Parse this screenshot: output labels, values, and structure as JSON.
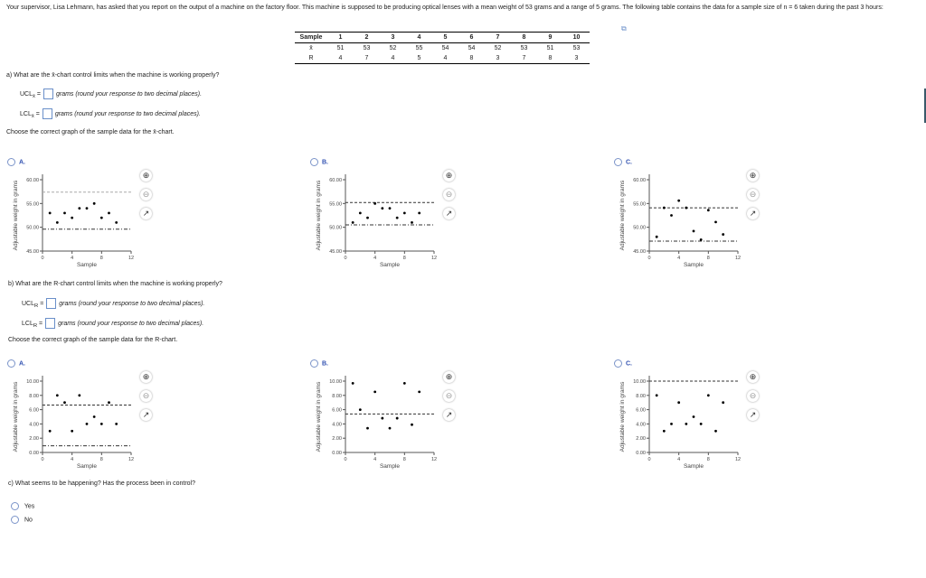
{
  "intro": "Your supervisor, Lisa Lehmann, has asked that you report on the output of a machine on the factory floor. This machine is supposed to be producing optical lenses with a mean weight of 53 grams and a range of 5 grams. The following table contains the data for a sample size of n = 6 taken during the past 3 hours:",
  "table": {
    "headers": [
      "Sample",
      "1",
      "2",
      "3",
      "4",
      "5",
      "6",
      "7",
      "8",
      "9",
      "10"
    ],
    "rows": [
      [
        "x̄",
        "51",
        "53",
        "52",
        "55",
        "54",
        "54",
        "52",
        "53",
        "51",
        "53"
      ],
      [
        "R",
        "4",
        "7",
        "4",
        "5",
        "4",
        "8",
        "3",
        "7",
        "8",
        "3"
      ]
    ]
  },
  "qa": {
    "question": "a) What are the x̄-chart control limits when the machine is working properly?",
    "ucl_label": "UCL",
    "ucl_sub": "x̄",
    "lcl_label": "LCL",
    "lcl_sub": "x̄",
    "eq": "=",
    "hint": "grams (round your response to two decimal places).",
    "choose": "Choose the correct graph of the sample data for the x̄-chart."
  },
  "qb": {
    "question": "b) What are the R-chart control limits when the machine is working properly?",
    "ucl_label": "UCL",
    "ucl_sub": "R",
    "lcl_label": "LCL",
    "lcl_sub": "R",
    "eq": "=",
    "hint": "grams (round your response to two decimal places).",
    "choose": "Choose the correct graph of the sample data for the R-chart."
  },
  "qc": {
    "question": "c) What seems to be happening? Has the process been in control?",
    "options": [
      "Yes",
      "No"
    ]
  },
  "icons": [
    "zoom-in-icon",
    "zoom-out-icon",
    "popout-icon"
  ],
  "chart_data": [
    {
      "id": "xbar-A",
      "option": "A.",
      "type": "scatter",
      "xlabel": "Sample",
      "ylabel": "Adjustable weight in grams",
      "xlim": [
        0,
        12
      ],
      "ylim": [
        45,
        60
      ],
      "xticks": [
        "0",
        "4",
        "8",
        "12"
      ],
      "yticks": [
        "60.00",
        "55.00",
        "50.00",
        "45.00"
      ],
      "ytickvals": [
        60,
        55,
        50,
        45
      ],
      "x": [
        1,
        2,
        3,
        4,
        5,
        6,
        7,
        8,
        9,
        10
      ],
      "y": [
        53,
        51,
        53,
        52,
        54,
        54,
        55,
        52,
        53,
        51
      ],
      "ucl": 57.4,
      "lcl": 49.6
    },
    {
      "id": "xbar-B",
      "option": "B.",
      "type": "scatter",
      "xlabel": "Sample",
      "ylabel": "Adjustable weight in grams",
      "xlim": [
        0,
        12
      ],
      "ylim": [
        45,
        60
      ],
      "xticks": [
        "0",
        "4",
        "8",
        "12"
      ],
      "yticks": [
        "60.00",
        "55.00",
        "50.00",
        "45.00"
      ],
      "ytickvals": [
        60,
        55,
        50,
        45
      ],
      "x": [
        1,
        2,
        3,
        4,
        5,
        6,
        7,
        8,
        9,
        10
      ],
      "y": [
        51,
        53,
        52,
        55,
        54,
        54,
        52,
        53,
        51,
        53
      ],
      "ucl": 55.2,
      "lcl": 50.5
    },
    {
      "id": "xbar-C",
      "option": "C.",
      "type": "scatter",
      "xlabel": "Sample",
      "ylabel": "Adjustable weight in grams",
      "xlim": [
        0,
        12
      ],
      "ylim": [
        45,
        60
      ],
      "xticks": [
        "0",
        "4",
        "8",
        "12"
      ],
      "yticks": [
        "60.00",
        "55.00",
        "50.00",
        "45.00"
      ],
      "ytickvals": [
        60,
        55,
        50,
        45
      ],
      "x": [
        1,
        2,
        3,
        4,
        5,
        6,
        7,
        8,
        9,
        10
      ],
      "y": [
        48,
        54.1,
        52.5,
        55.6,
        54.1,
        49.2,
        47.4,
        53.6,
        51.1,
        48.5
      ],
      "ucl": 54.1,
      "lcl": 47.1
    },
    {
      "id": "r-A",
      "option": "A.",
      "type": "scatter",
      "xlabel": "Sample",
      "ylabel": "Adjustable weight in grams",
      "xlim": [
        0,
        12
      ],
      "ylim": [
        0,
        10
      ],
      "xticks": [
        "0",
        "4",
        "8",
        "12"
      ],
      "yticks": [
        "10.00",
        "8.00",
        "6.00",
        "4.00",
        "2.00",
        "0.00"
      ],
      "ytickvals": [
        10,
        8,
        6,
        4,
        2,
        0
      ],
      "x": [
        1,
        2,
        3,
        4,
        5,
        6,
        7,
        8,
        9,
        10
      ],
      "y": [
        3,
        8,
        7,
        3,
        8,
        4,
        5,
        4,
        7,
        4
      ],
      "ucl": 6.65,
      "lcl": 0.93
    },
    {
      "id": "r-B",
      "option": "B.",
      "type": "scatter",
      "xlabel": "Sample",
      "ylabel": "Adjustable weight in grams",
      "xlim": [
        0,
        12
      ],
      "ylim": [
        0,
        10
      ],
      "xticks": [
        "0",
        "4",
        "8",
        "12"
      ],
      "yticks": [
        "10.00",
        "8.00",
        "6.00",
        "4.00",
        "2.00",
        "0.00"
      ],
      "ytickvals": [
        10,
        8,
        6,
        4,
        2,
        0
      ],
      "x": [
        1,
        2,
        3,
        4,
        5,
        6,
        7,
        8,
        9,
        10
      ],
      "y": [
        9.7,
        6,
        3.4,
        8.5,
        4.8,
        3.4,
        4.8,
        9.7,
        3.9,
        8.5
      ],
      "ucl": 5.4,
      "lcl": null
    },
    {
      "id": "r-C",
      "option": "C.",
      "type": "scatter",
      "xlabel": "Sample",
      "ylabel": "Adjustable weight in grams",
      "xlim": [
        0,
        12
      ],
      "ylim": [
        0,
        10
      ],
      "xticks": [
        "0",
        "4",
        "8",
        "12"
      ],
      "yticks": [
        "10.00",
        "8.00",
        "6.00",
        "4.00",
        "2.00",
        "0.00"
      ],
      "ytickvals": [
        10,
        8,
        6,
        4,
        2,
        0
      ],
      "x": [
        1,
        2,
        3,
        4,
        5,
        6,
        7,
        8,
        9,
        10
      ],
      "y": [
        8,
        3,
        4,
        7,
        4,
        5,
        4,
        8,
        3,
        7
      ],
      "ucl": 10,
      "lcl": null
    }
  ]
}
